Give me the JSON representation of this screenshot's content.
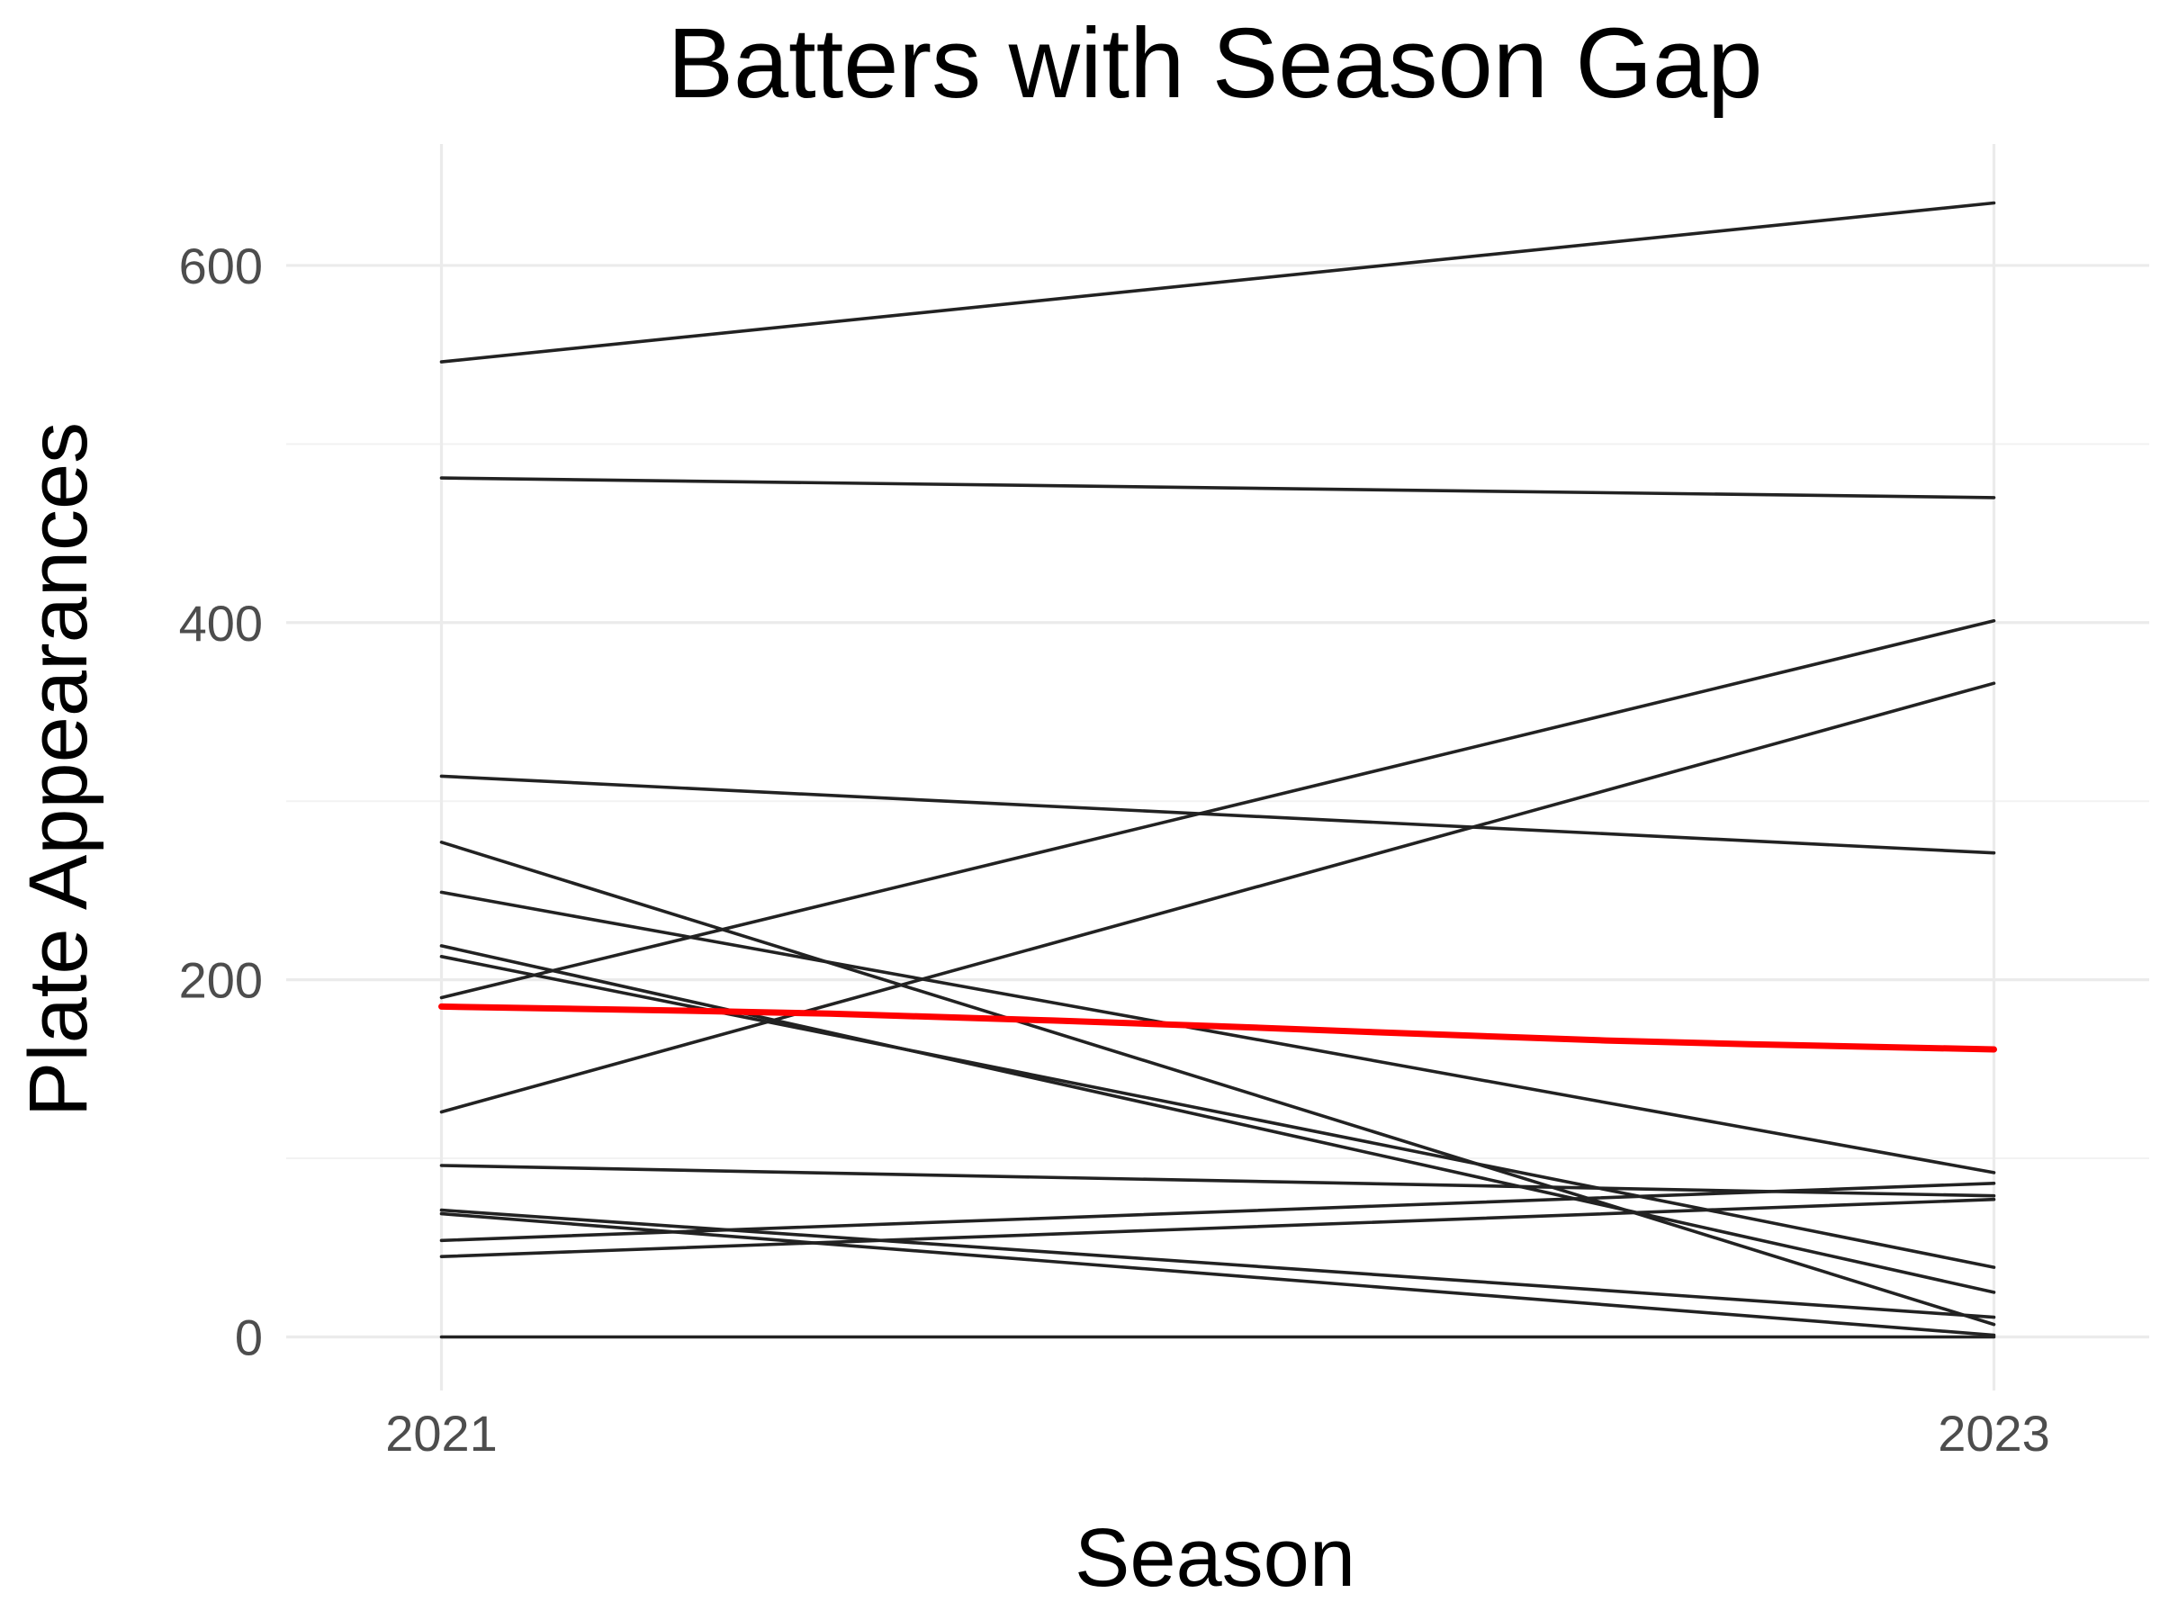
{
  "chart_data": {
    "type": "line",
    "title": "Batters with Season Gap",
    "xlabel": "Season",
    "ylabel": "Plate Appearances",
    "x": [
      2021,
      2023
    ],
    "xlim": [
      2020.8,
      2023.2
    ],
    "ylim": [
      -30,
      668
    ],
    "x_ticks": [
      2021,
      2023
    ],
    "y_ticks": [
      0,
      200,
      400,
      600
    ],
    "y_minor_ticks": [
      100,
      300,
      500
    ],
    "grid": true,
    "legend": "none",
    "line_color": "#222222",
    "trend_color": "#ff0000",
    "series": [
      {
        "values": [
          546,
          635
        ]
      },
      {
        "values": [
          481,
          470
        ]
      },
      {
        "values": [
          190,
          401
        ]
      },
      {
        "values": [
          126,
          366
        ]
      },
      {
        "values": [
          314,
          271
        ]
      },
      {
        "values": [
          277,
          7
        ]
      },
      {
        "values": [
          249,
          92
        ]
      },
      {
        "values": [
          219,
          25
        ]
      },
      {
        "values": [
          213,
          39
        ]
      },
      {
        "values": [
          96,
          79
        ]
      },
      {
        "values": [
          71,
          11
        ]
      },
      {
        "values": [
          69,
          1
        ]
      },
      {
        "values": [
          54,
          86
        ]
      },
      {
        "values": [
          45,
          77
        ]
      },
      {
        "values": [
          0,
          0
        ]
      }
    ],
    "trend": {
      "x": [
        2021,
        2021.5,
        2022,
        2022.5,
        2023
      ],
      "values": [
        185,
        181,
        174,
        166,
        161
      ]
    }
  }
}
